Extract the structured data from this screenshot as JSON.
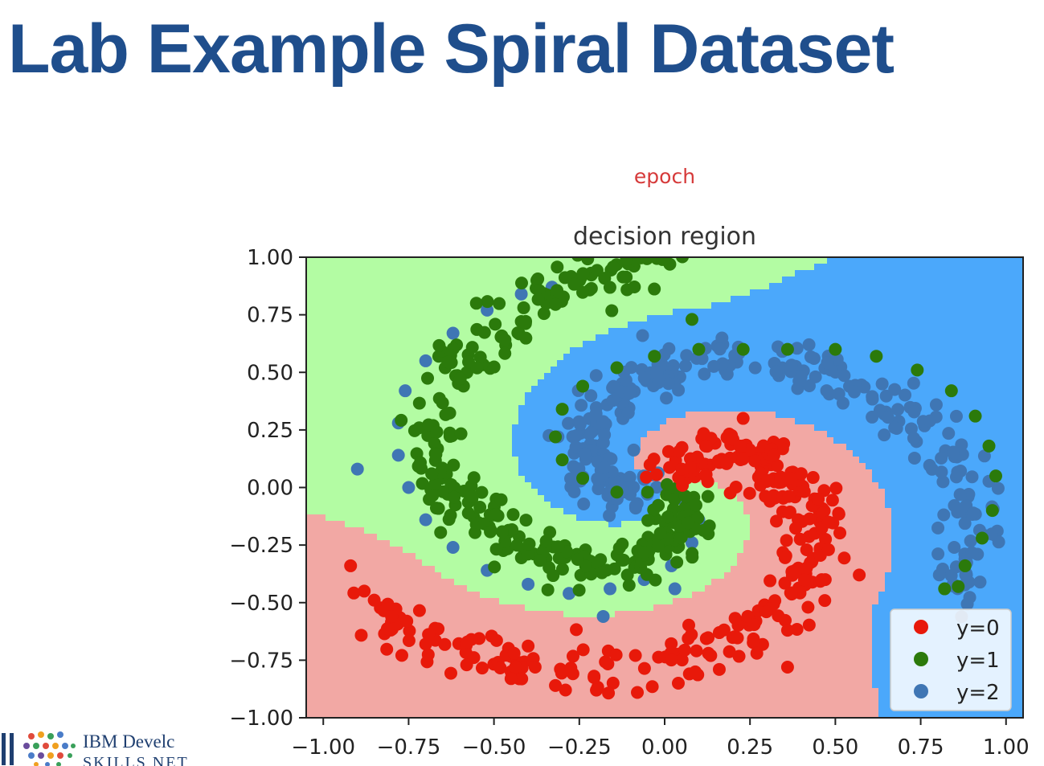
{
  "slide": {
    "title": "Lab Example Spiral Dataset"
  },
  "logo": {
    "line1": "IBM Develc",
    "line2": "SKILLS NET"
  },
  "colors": {
    "region_0": "#f2a8a4",
    "region_1": "#b3fca3",
    "region_2": "#4ba8fb",
    "class_0": "#e8190a",
    "class_1": "#2b7a0b",
    "class_2": "#3f76b4",
    "epoch_label": "#d63a3a"
  },
  "chart_data": {
    "type": "scatter",
    "header_label": "epoch",
    "title": "decision region",
    "xlim": [
      -1.05,
      1.05
    ],
    "ylim": [
      -1.0,
      1.0
    ],
    "xticks": [
      "−1.00",
      "−0.75",
      "−0.50",
      "−0.25",
      "0.00",
      "0.25",
      "0.50",
      "0.75",
      "1.00"
    ],
    "yticks": [
      "1.00",
      "0.75",
      "0.50",
      "0.25",
      "0.00",
      "−0.25",
      "−0.50",
      "−0.75",
      "−1.00"
    ],
    "legend": {
      "position": "lower-right",
      "entries": [
        "y=0",
        "y=1",
        "y=2"
      ]
    },
    "series": [
      {
        "name": "y=0",
        "spiral": {
          "r_start": 0.0,
          "r_end": 1.0,
          "angle_start_deg": 90,
          "angle_end_deg": -150,
          "noise": 0.05
        },
        "points": [
          [
            0.05,
            0.08
          ],
          [
            0.12,
            0.18
          ],
          [
            0.22,
            0.18
          ],
          [
            0.32,
            0.14
          ],
          [
            0.4,
            0.06
          ],
          [
            0.45,
            -0.05
          ],
          [
            0.48,
            -0.15
          ],
          [
            0.48,
            -0.27
          ],
          [
            0.46,
            -0.4
          ],
          [
            0.42,
            -0.52
          ],
          [
            0.36,
            -0.62
          ],
          [
            0.27,
            -0.72
          ],
          [
            0.16,
            -0.79
          ],
          [
            0.04,
            -0.85
          ],
          [
            -0.08,
            -0.89
          ],
          [
            -0.2,
            -0.88
          ],
          [
            -0.32,
            -0.86
          ],
          [
            -0.45,
            -0.83
          ],
          [
            -0.58,
            -0.77
          ],
          [
            -0.7,
            -0.68
          ],
          [
            -0.8,
            -0.56
          ],
          [
            -0.88,
            -0.45
          ],
          [
            -0.92,
            -0.34
          ],
          [
            0.23,
            0.3
          ],
          [
            0.57,
            -0.38
          ],
          [
            0.36,
            -0.78
          ]
        ]
      },
      {
        "name": "y=1",
        "spiral": {
          "r_start": 0.0,
          "r_end": 1.0,
          "angle_start_deg": -30,
          "angle_end_deg": -270,
          "noise": 0.05
        },
        "points": [
          [
            -0.05,
            -0.02
          ],
          [
            -0.14,
            -0.02
          ],
          [
            -0.24,
            0.04
          ],
          [
            -0.3,
            0.12
          ],
          [
            -0.32,
            0.22
          ],
          [
            -0.3,
            0.34
          ],
          [
            -0.24,
            0.44
          ],
          [
            -0.14,
            0.52
          ],
          [
            -0.03,
            0.57
          ],
          [
            0.1,
            0.6
          ],
          [
            0.23,
            0.6
          ],
          [
            0.36,
            0.6
          ],
          [
            0.5,
            0.6
          ],
          [
            0.62,
            0.57
          ],
          [
            0.74,
            0.51
          ],
          [
            0.84,
            0.42
          ],
          [
            0.91,
            0.31
          ],
          [
            0.95,
            0.18
          ],
          [
            0.97,
            0.05
          ],
          [
            0.96,
            -0.1
          ],
          [
            0.93,
            -0.22
          ],
          [
            0.88,
            -0.34
          ],
          [
            0.82,
            -0.44
          ],
          [
            0.08,
            0.73
          ],
          [
            0.86,
            -0.43
          ]
        ]
      },
      {
        "name": "y=2",
        "spiral": {
          "r_start": 0.0,
          "r_end": 1.0,
          "angle_start_deg": 210,
          "angle_end_deg": -30,
          "noise": 0.05
        },
        "points": [
          [
            0.05,
            -0.05
          ],
          [
            0.1,
            -0.14
          ],
          [
            0.08,
            -0.24
          ],
          [
            0.02,
            -0.34
          ],
          [
            -0.06,
            -0.4
          ],
          [
            -0.16,
            -0.44
          ],
          [
            -0.28,
            -0.46
          ],
          [
            -0.4,
            -0.42
          ],
          [
            -0.52,
            -0.36
          ],
          [
            -0.62,
            -0.26
          ],
          [
            -0.7,
            -0.14
          ],
          [
            -0.75,
            0.0
          ],
          [
            -0.78,
            0.14
          ],
          [
            -0.78,
            0.28
          ],
          [
            -0.76,
            0.42
          ],
          [
            -0.7,
            0.55
          ],
          [
            -0.62,
            0.67
          ],
          [
            -0.52,
            0.77
          ],
          [
            -0.42,
            0.84
          ],
          [
            -0.33,
            0.87
          ],
          [
            -0.9,
            0.08
          ],
          [
            -0.18,
            -0.56
          ],
          [
            0.03,
            -0.44
          ]
        ]
      }
    ]
  }
}
